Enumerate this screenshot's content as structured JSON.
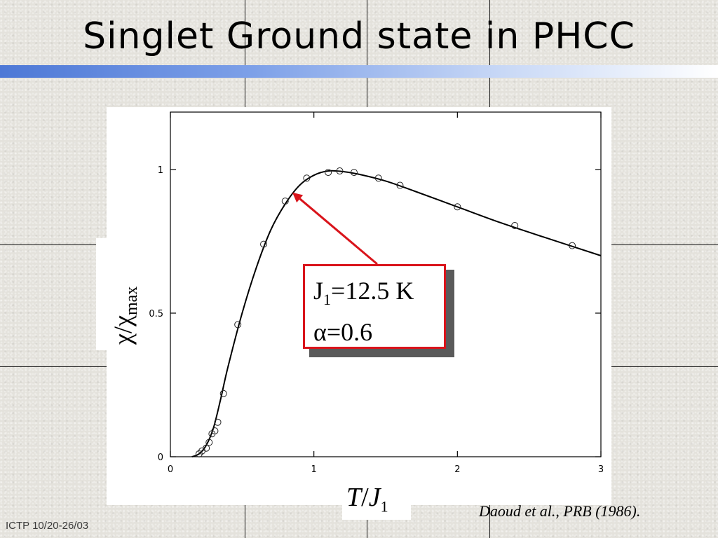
{
  "slide": {
    "title": "Singlet Ground state in PHCC",
    "citation": "Daoud et al., PRB (1986).",
    "footer": "ICTP 10/20-26/03"
  },
  "annotation": {
    "line1_main": "J",
    "line1_sub": "1",
    "line1_rest": "=12.5 K",
    "line2": "α=0.6",
    "box_color": "#d9141b"
  },
  "chart_data": {
    "type": "scatter",
    "xlabel_main": "T",
    "xlabel_sep": "/",
    "xlabel_J": "J",
    "xlabel_sub": "1",
    "ylabel_main": "χ/χ",
    "ylabel_sub": "max",
    "xlim": [
      0,
      3
    ],
    "ylim": [
      0,
      1.2
    ],
    "x_ticks": [
      "0",
      "1",
      "2",
      "3"
    ],
    "y_ticks": [
      "0",
      "0.5",
      "1"
    ],
    "series": [
      {
        "kind": "points",
        "x": [
          0.2,
          0.22,
          0.25,
          0.27,
          0.29,
          0.31,
          0.33,
          0.37,
          0.47,
          0.65,
          0.8,
          0.95,
          1.1,
          1.18,
          1.28,
          1.45,
          1.6,
          2.0,
          2.4,
          2.8
        ],
        "y": [
          0.01,
          0.02,
          0.03,
          0.05,
          0.08,
          0.09,
          0.12,
          0.22,
          0.46,
          0.74,
          0.89,
          0.97,
          0.99,
          0.995,
          0.99,
          0.97,
          0.945,
          0.87,
          0.805,
          0.735
        ]
      },
      {
        "kind": "curve",
        "x": [
          0.15,
          0.2,
          0.25,
          0.3,
          0.35,
          0.4,
          0.5,
          0.6,
          0.7,
          0.8,
          0.9,
          1.0,
          1.1,
          1.2,
          1.3,
          1.5,
          1.7,
          2.0,
          2.3,
          2.6,
          3.0
        ],
        "y": [
          0.0,
          0.01,
          0.04,
          0.1,
          0.2,
          0.31,
          0.5,
          0.66,
          0.79,
          0.88,
          0.945,
          0.98,
          0.995,
          0.993,
          0.985,
          0.96,
          0.925,
          0.87,
          0.815,
          0.765,
          0.7
        ]
      }
    ],
    "arrow_target": {
      "x": 0.85,
      "y": 0.92
    }
  }
}
